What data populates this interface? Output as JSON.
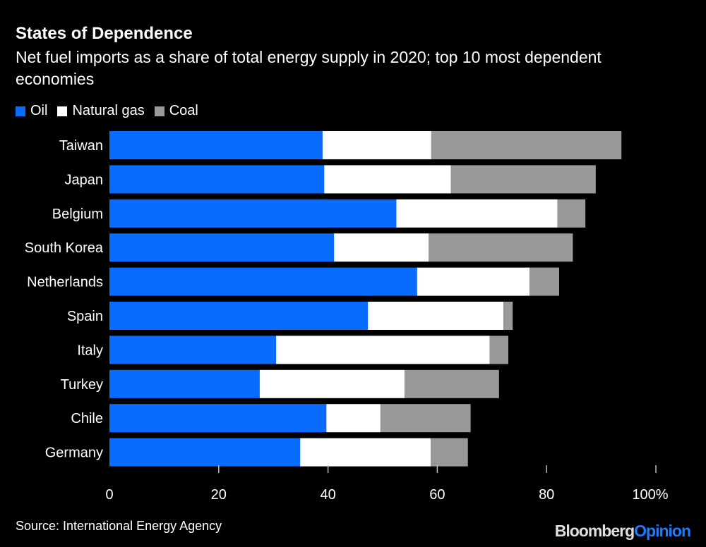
{
  "chart_data": {
    "type": "bar",
    "orientation": "horizontal",
    "stacked": true,
    "title": "States of Dependence",
    "subtitle": "Net fuel imports as a share of total energy supply in 2020; top 10 most dependent economies",
    "categories": [
      "Taiwan",
      "Japan",
      "Belgium",
      "South Korea",
      "Netherlands",
      "Spain",
      "Italy",
      "Turkey",
      "Chile",
      "Germany"
    ],
    "series": [
      {
        "name": "Oil",
        "color": "#0a6cff",
        "values": [
          39.0,
          39.3,
          52.5,
          41.1,
          56.3,
          47.3,
          30.5,
          27.5,
          39.7,
          34.9
        ]
      },
      {
        "name": "Natural gas",
        "color": "#ffffff",
        "values": [
          19.9,
          23.2,
          29.5,
          17.3,
          20.6,
          24.8,
          39.1,
          26.5,
          9.9,
          23.9
        ]
      },
      {
        "name": "Coal",
        "color": "#999999",
        "values": [
          34.8,
          26.5,
          5.1,
          26.4,
          5.4,
          1.7,
          3.4,
          17.3,
          16.5,
          6.8
        ]
      }
    ],
    "xlim": [
      0,
      100
    ],
    "xticks": [
      "0",
      "20",
      "40",
      "60",
      "80",
      "100%"
    ],
    "legend_position": "top-left",
    "grid": false
  },
  "footer": {
    "source": "Source: International Energy Agency",
    "logo": "BloombergOpinion"
  }
}
